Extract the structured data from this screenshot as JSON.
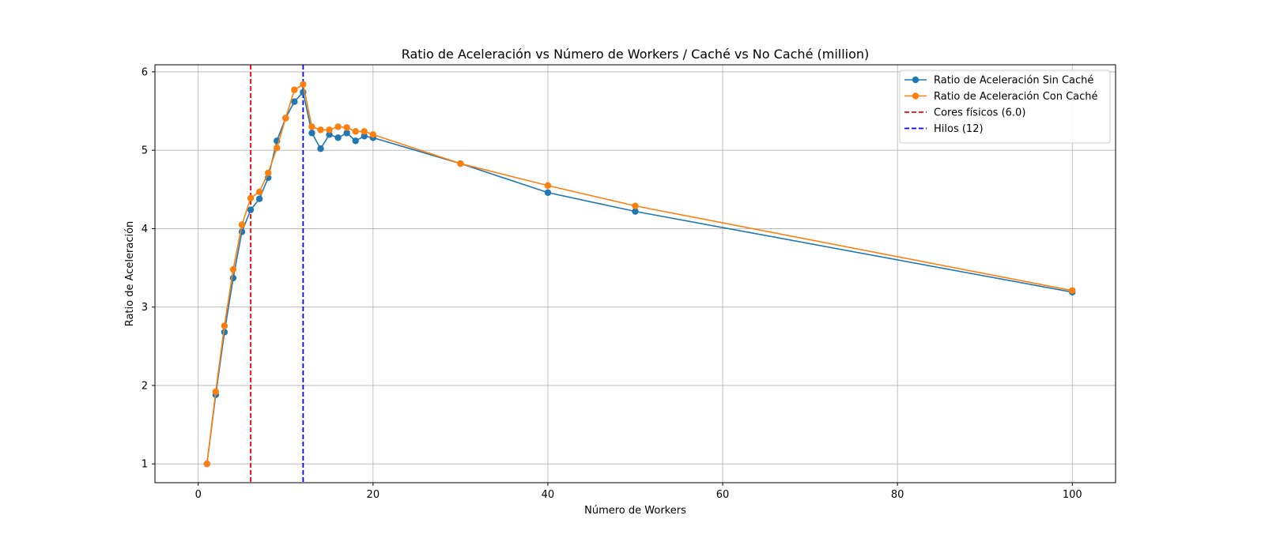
{
  "chart_data": {
    "type": "line",
    "title": "Ratio de Aceleración vs Número de Workers / Caché vs No Caché (million)",
    "xlabel": "Número de Workers",
    "ylabel": "Ratio de Aceleración",
    "xlim": [
      -4.95,
      104.95
    ],
    "ylim": [
      0.76,
      6.09
    ],
    "xticks": [
      0,
      20,
      40,
      60,
      80,
      100
    ],
    "yticks": [
      1,
      2,
      3,
      4,
      5,
      6
    ],
    "grid": true,
    "legend_position": "top-right",
    "series": [
      {
        "name": "Ratio de Aceleración Sin Caché",
        "color": "#1f77b4",
        "x": [
          1,
          2,
          3,
          4,
          5,
          6,
          7,
          8,
          9,
          10,
          11,
          12,
          13,
          14,
          15,
          16,
          17,
          18,
          19,
          20,
          30,
          40,
          50,
          100
        ],
        "y": [
          1.0,
          1.88,
          2.68,
          3.37,
          3.96,
          4.24,
          4.38,
          4.65,
          5.12,
          5.41,
          5.62,
          5.74,
          5.22,
          5.02,
          5.2,
          5.16,
          5.22,
          5.12,
          5.18,
          5.16,
          4.83,
          4.46,
          4.22,
          3.19
        ]
      },
      {
        "name": "Ratio de Aceleración Con Caché",
        "color": "#ff7f0e",
        "x": [
          1,
          2,
          3,
          4,
          5,
          6,
          7,
          8,
          9,
          10,
          11,
          12,
          13,
          14,
          15,
          16,
          17,
          18,
          19,
          20,
          30,
          40,
          50,
          100
        ],
        "y": [
          1.0,
          1.92,
          2.76,
          3.48,
          4.05,
          4.39,
          4.47,
          4.71,
          5.03,
          5.41,
          5.77,
          5.84,
          5.3,
          5.26,
          5.26,
          5.3,
          5.29,
          5.24,
          5.24,
          5.2,
          4.83,
          4.55,
          4.29,
          3.21
        ]
      }
    ],
    "vlines": [
      {
        "name": "Cores físicos (6.0)",
        "x": 6.0,
        "color": "#ff0000",
        "style": "dashed"
      },
      {
        "name": "Hilos (12)",
        "x": 12,
        "color": "#0000ff",
        "style": "dashed"
      }
    ]
  }
}
